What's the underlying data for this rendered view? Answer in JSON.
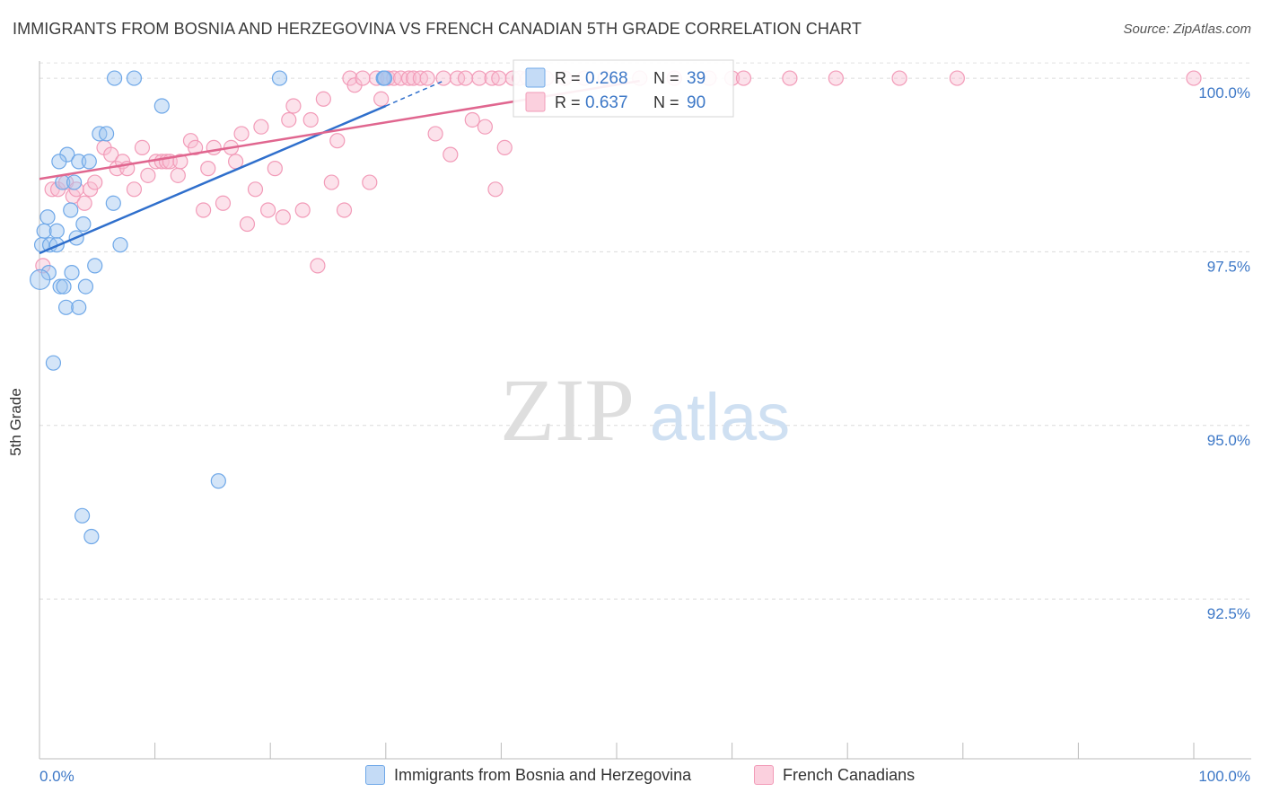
{
  "title": "IMMIGRANTS FROM BOSNIA AND HERZEGOVINA VS FRENCH CANADIAN 5TH GRADE CORRELATION CHART",
  "source": "Source: ZipAtlas.com",
  "watermark": {
    "zip": "ZIP",
    "atlas": "atlas"
  },
  "colors": {
    "blue": "#6fa8e8",
    "blue_line": "#2f6fcc",
    "pink": "#f29bb8",
    "pink_line": "#e0668f",
    "tick_label": "#3d78c7"
  },
  "chart_data": {
    "type": "scatter",
    "title": "IMMIGRANTS FROM BOSNIA AND HERZEGOVINA VS FRENCH CANADIAN 5TH GRADE CORRELATION CHART",
    "xlabel": "",
    "ylabel": "5th Grade",
    "xlim": [
      0,
      100
    ],
    "ylim": [
      90.2,
      100.35
    ],
    "x_tick_labels": [
      "0.0%",
      "100.0%"
    ],
    "y_ticks": [
      100.0,
      97.5,
      95.0,
      92.5
    ],
    "y_tick_labels": [
      "100.0%",
      "97.5%",
      "95.0%",
      "92.5%"
    ],
    "grid": true,
    "legend_top": [
      {
        "r_label": "R =",
        "r_value": "0.268",
        "n_label": "N =",
        "n_value": "39"
      },
      {
        "r_label": "R =",
        "r_value": "0.637",
        "n_label": "N =",
        "n_value": "90"
      }
    ],
    "series": [
      {
        "name": "Immigrants from Bosnia and Herzegovina",
        "color": "blue",
        "trend": {
          "x": [
            0,
            30
          ],
          "y": [
            97.48,
            99.6
          ],
          "dashed_to_x": 35,
          "dashed_to_y": 99.96
        },
        "points": [
          [
            6.5,
            100
          ],
          [
            8.2,
            100
          ],
          [
            20.8,
            100
          ],
          [
            29.8,
            100
          ],
          [
            10.6,
            99.6
          ],
          [
            5.2,
            99.2
          ],
          [
            5.8,
            99.2
          ],
          [
            2.4,
            98.9
          ],
          [
            1.7,
            98.8
          ],
          [
            3.4,
            98.8
          ],
          [
            4.3,
            98.8
          ],
          [
            2.0,
            98.5
          ],
          [
            3.0,
            98.5
          ],
          [
            6.4,
            98.2
          ],
          [
            2.7,
            98.1
          ],
          [
            0.7,
            98.0
          ],
          [
            3.8,
            97.9
          ],
          [
            0.4,
            97.8
          ],
          [
            1.5,
            97.8
          ],
          [
            3.2,
            97.7
          ],
          [
            0.2,
            97.6
          ],
          [
            0.9,
            97.6
          ],
          [
            1.5,
            97.6
          ],
          [
            7.0,
            97.6
          ],
          [
            4.8,
            97.3
          ],
          [
            2.8,
            97.2
          ],
          [
            0.8,
            97.2
          ],
          [
            0.05,
            97.1
          ],
          [
            1.8,
            97.0
          ],
          [
            2.1,
            97.0
          ],
          [
            4.0,
            97.0
          ],
          [
            2.3,
            96.7
          ],
          [
            3.4,
            96.7
          ],
          [
            1.2,
            95.9
          ],
          [
            15.5,
            94.2
          ],
          [
            3.7,
            93.7
          ],
          [
            4.5,
            93.4
          ],
          [
            29.8,
            100
          ],
          [
            29.9,
            100
          ]
        ]
      },
      {
        "name": "French Canadians",
        "color": "pink",
        "trend": {
          "x": [
            0,
            52
          ],
          "y": [
            98.55,
            99.96
          ]
        },
        "points": [
          [
            0.3,
            97.3
          ],
          [
            1.1,
            98.4
          ],
          [
            1.6,
            98.4
          ],
          [
            2.3,
            98.5
          ],
          [
            2.9,
            98.3
          ],
          [
            3.2,
            98.4
          ],
          [
            3.9,
            98.2
          ],
          [
            4.4,
            98.4
          ],
          [
            4.8,
            98.5
          ],
          [
            5.6,
            99.0
          ],
          [
            6.2,
            98.9
          ],
          [
            6.7,
            98.7
          ],
          [
            7.2,
            98.8
          ],
          [
            7.6,
            98.7
          ],
          [
            8.2,
            98.4
          ],
          [
            8.9,
            99.0
          ],
          [
            9.4,
            98.6
          ],
          [
            10.1,
            98.8
          ],
          [
            10.6,
            98.8
          ],
          [
            11.0,
            98.8
          ],
          [
            11.3,
            98.8
          ],
          [
            12.0,
            98.6
          ],
          [
            12.2,
            98.8
          ],
          [
            13.1,
            99.1
          ],
          [
            13.5,
            99.0
          ],
          [
            14.2,
            98.1
          ],
          [
            14.6,
            98.7
          ],
          [
            15.1,
            99.0
          ],
          [
            15.9,
            98.2
          ],
          [
            16.6,
            99.0
          ],
          [
            17.0,
            98.8
          ],
          [
            17.5,
            99.2
          ],
          [
            18.0,
            97.9
          ],
          [
            18.7,
            98.4
          ],
          [
            19.2,
            99.3
          ],
          [
            19.8,
            98.1
          ],
          [
            20.4,
            98.7
          ],
          [
            21.1,
            98.0
          ],
          [
            21.6,
            99.4
          ],
          [
            22.0,
            99.6
          ],
          [
            22.8,
            98.1
          ],
          [
            23.5,
            99.4
          ],
          [
            24.1,
            97.3
          ],
          [
            24.6,
            99.7
          ],
          [
            25.3,
            98.5
          ],
          [
            25.8,
            99.1
          ],
          [
            26.4,
            98.1
          ],
          [
            26.9,
            100
          ],
          [
            27.3,
            99.9
          ],
          [
            28.0,
            100
          ],
          [
            28.6,
            98.5
          ],
          [
            29.2,
            100
          ],
          [
            29.6,
            99.7
          ],
          [
            30.2,
            100
          ],
          [
            30.7,
            100
          ],
          [
            31.3,
            100
          ],
          [
            32.0,
            100
          ],
          [
            32.4,
            100
          ],
          [
            33.0,
            100
          ],
          [
            33.6,
            100
          ],
          [
            34.3,
            99.2
          ],
          [
            35.0,
            100
          ],
          [
            35.6,
            98.9
          ],
          [
            36.2,
            100
          ],
          [
            36.9,
            100
          ],
          [
            37.5,
            99.4
          ],
          [
            38.1,
            100
          ],
          [
            38.6,
            99.3
          ],
          [
            39.2,
            100
          ],
          [
            39.8,
            100
          ],
          [
            40.3,
            99.0
          ],
          [
            41.0,
            100
          ],
          [
            41.6,
            100
          ],
          [
            42.3,
            100
          ],
          [
            43.1,
            100
          ],
          [
            43.9,
            100
          ],
          [
            45.5,
            100
          ],
          [
            47.2,
            100
          ],
          [
            49.0,
            100
          ],
          [
            52.0,
            100
          ],
          [
            55.0,
            100
          ],
          [
            58.0,
            100
          ],
          [
            60.0,
            100
          ],
          [
            39.5,
            98.4
          ],
          [
            61.0,
            100
          ],
          [
            65.0,
            100
          ],
          [
            69.0,
            100
          ],
          [
            74.5,
            100
          ],
          [
            79.5,
            100
          ],
          [
            100,
            100
          ]
        ]
      }
    ]
  },
  "legend_bottom": [
    {
      "label": "Immigrants from Bosnia and Herzegovina"
    },
    {
      "label": "French Canadians"
    }
  ]
}
